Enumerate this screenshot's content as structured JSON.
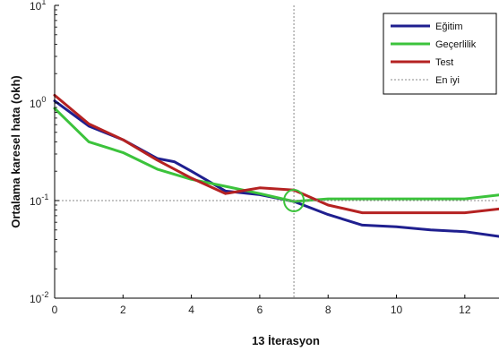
{
  "chart_data": {
    "type": "line",
    "xlabel": "13 İterasyon",
    "ylabel": "Ortalama karesel hata (okh)",
    "xlim": [
      0,
      13
    ],
    "ylim": [
      0.01,
      10
    ],
    "yscale": "log",
    "x_ticks": [
      0,
      2,
      4,
      6,
      8,
      10,
      12
    ],
    "y_ticks": [
      {
        "value": 0.01,
        "base": "10",
        "exp": "-2"
      },
      {
        "value": 0.1,
        "base": "10",
        "exp": "-1"
      },
      {
        "value": 1,
        "base": "10",
        "exp": "0"
      },
      {
        "value": 10,
        "base": "10",
        "exp": "1"
      }
    ],
    "grid": false,
    "legend_position": "top-right",
    "series": [
      {
        "name": "Eğitim",
        "color": "#1f1f8f",
        "x": [
          0,
          1,
          2,
          3,
          3.5,
          4,
          5,
          6,
          7,
          8,
          9,
          10,
          11,
          12,
          13
        ],
        "y": [
          1.05,
          0.58,
          0.42,
          0.27,
          0.25,
          0.2,
          0.125,
          0.115,
          0.098,
          0.072,
          0.056,
          0.054,
          0.05,
          0.048,
          0.043
        ]
      },
      {
        "name": "Geçerlilik",
        "color": "#3cc33c",
        "x": [
          0,
          1,
          2,
          3,
          4,
          5,
          6,
          7,
          8,
          9,
          10,
          11,
          12,
          13
        ],
        "y": [
          0.88,
          0.4,
          0.31,
          0.21,
          0.165,
          0.14,
          0.118,
          0.098,
          0.104,
          0.104,
          0.104,
          0.104,
          0.104,
          0.114
        ]
      },
      {
        "name": "Test",
        "color": "#b52222",
        "x": [
          0,
          1,
          2,
          3,
          4,
          5,
          6,
          7,
          8,
          9,
          10,
          11,
          12,
          13
        ],
        "y": [
          1.2,
          0.61,
          0.42,
          0.26,
          0.17,
          0.118,
          0.135,
          0.128,
          0.09,
          0.075,
          0.075,
          0.075,
          0.075,
          0.082
        ]
      }
    ],
    "best": {
      "name": "En iyi",
      "x": 7,
      "y": 0.1,
      "color": "#888888"
    }
  }
}
